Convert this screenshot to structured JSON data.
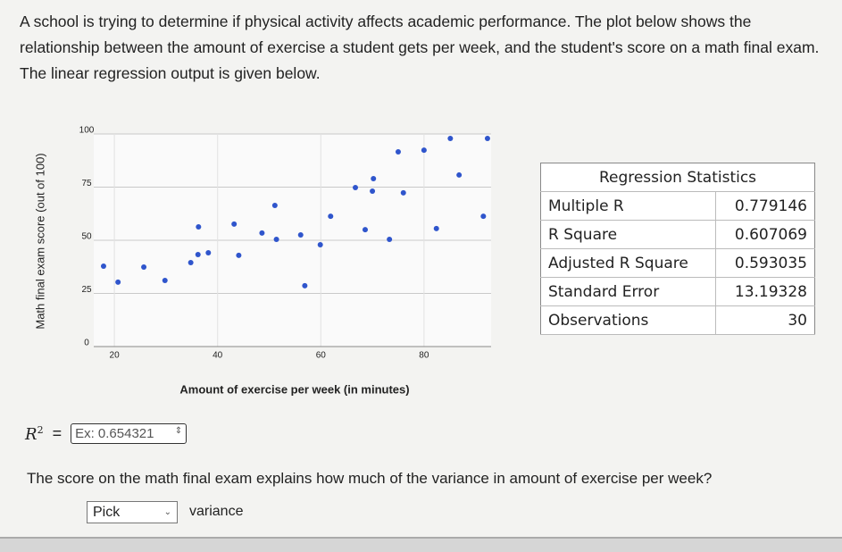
{
  "intro": "A school is trying to determine if physical activity affects academic performance. The plot below shows the relationship between the amount of exercise a student gets per week, and the student's score on a math final exam. The linear regression output is given below.",
  "chart_data": {
    "type": "scatter",
    "x_label": "Amount of exercise per week (in minutes)",
    "y_label": "Math final exam score (out of 100)",
    "color": "#2f55cc",
    "grid": true,
    "xlim": [
      16,
      93
    ],
    "ylim": [
      0,
      100
    ],
    "xticks": [
      20,
      40,
      60,
      80
    ],
    "yticks": [
      0,
      25,
      50,
      75,
      100
    ],
    "x": [
      17.9,
      20.7,
      25.7,
      29.8,
      34.8,
      36.2,
      38.2,
      36.3,
      43.2,
      44.1,
      48.6,
      51.1,
      51.4,
      56.1,
      56.9,
      59.9,
      61.9,
      66.7,
      68.6,
      70.2,
      70.0,
      73.3,
      76.0,
      75.0,
      80.0,
      82.4,
      86.8,
      91.5,
      85.1,
      92.3
    ],
    "values": [
      37.8,
      30.3,
      37.4,
      31.1,
      39.5,
      43.3,
      44.1,
      56.3,
      57.6,
      42.9,
      53.4,
      66.4,
      50.4,
      52.5,
      28.6,
      47.9,
      61.3,
      74.8,
      55.0,
      79.0,
      73.1,
      50.4,
      72.3,
      91.6,
      92.4,
      55.5,
      80.7,
      61.3,
      97.9,
      97.9
    ]
  },
  "table": {
    "header": "Regression Statistics",
    "rows": [
      [
        "Multiple R",
        "0.779146"
      ],
      [
        "R Square",
        "0.607069"
      ],
      [
        "Adjusted R Square",
        "0.593035"
      ],
      [
        "Standard Error",
        "13.19328"
      ],
      [
        "Observations",
        "30"
      ]
    ]
  },
  "r2": {
    "base": "R",
    "sup": "2",
    "equals": "=",
    "placeholder": "Ex: 0.654321"
  },
  "question": "The score on the math final exam explains how much of the variance in amount of exercise per week?",
  "select": {
    "placeholder": "Pick",
    "after": "variance"
  }
}
